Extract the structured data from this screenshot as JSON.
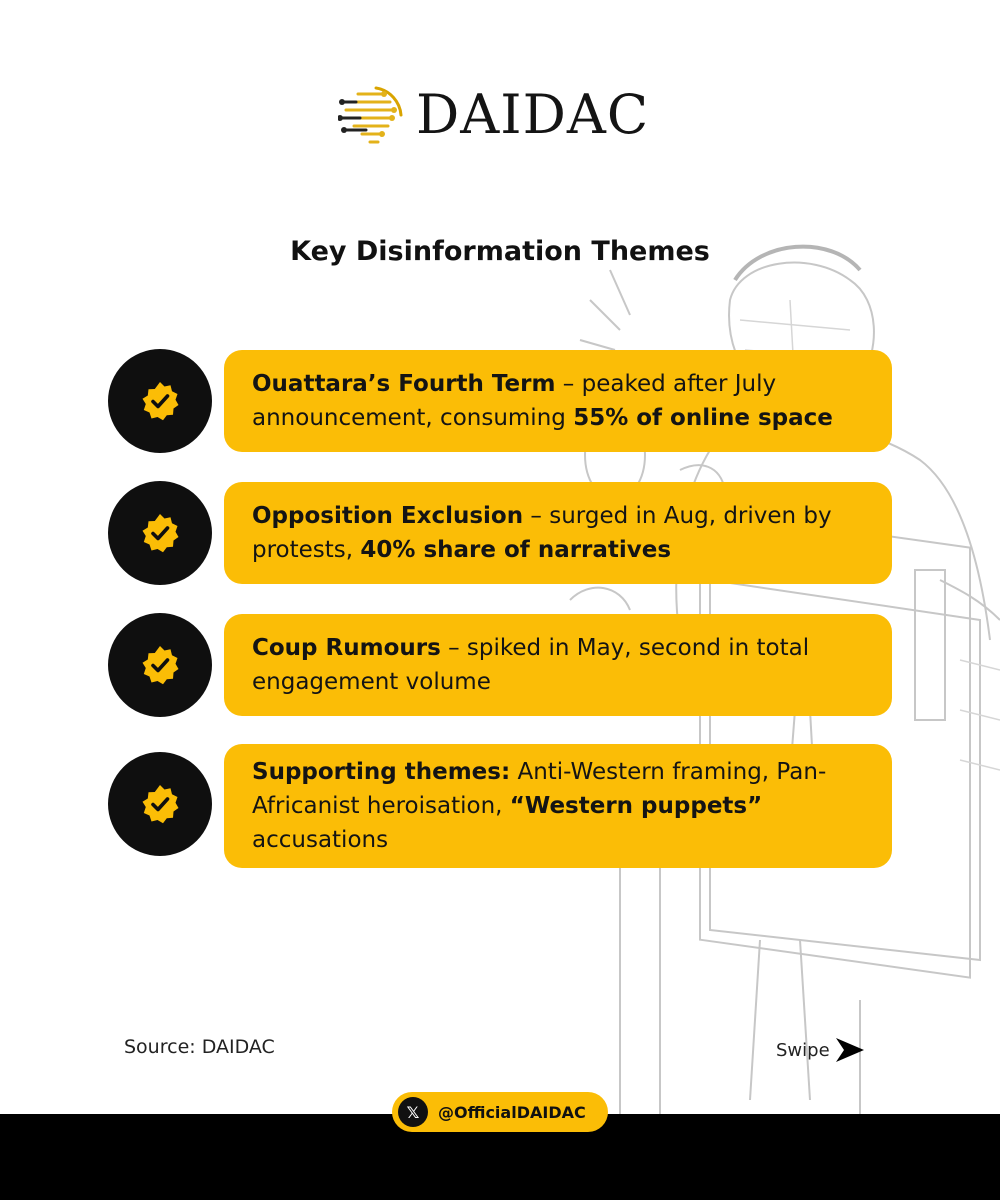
{
  "brand": {
    "name": "DAIDAC",
    "logo_icon": "circuit-globe-icon"
  },
  "heading": "Key Disinformation Themes",
  "themes": [
    {
      "icon": "verified-badge-icon",
      "title": "Ouattara’s Fourth Term",
      "text": " – peaked after July announcement, consuming ",
      "highlight": "55% of online space"
    },
    {
      "icon": "verified-badge-icon",
      "title": "Opposition Exclusion",
      "text": " – surged in Aug, driven by protests, ",
      "highlight": "40% share of narratives"
    },
    {
      "icon": "verified-badge-icon",
      "title": "Coup Rumours",
      "text": " – spiked in May, second in total engagement volume"
    },
    {
      "icon": "verified-badge-icon",
      "title": "Supporting themes:",
      "text": " Anti-Western framing, Pan-Africanist heroisation, ",
      "highlight": "“Western puppets”",
      "text_after": " accusations"
    }
  ],
  "source": "Source: DAIDAC",
  "swipe": {
    "label": "Swipe",
    "icon": "arrow-right-icon"
  },
  "social": {
    "icon": "x-logo-icon",
    "glyph": "𝕏",
    "handle": "@OfficialDAIDAC"
  },
  "colors": {
    "accent": "#fbbd06",
    "dark": "#0f0f0f",
    "background": "#ffffff"
  }
}
